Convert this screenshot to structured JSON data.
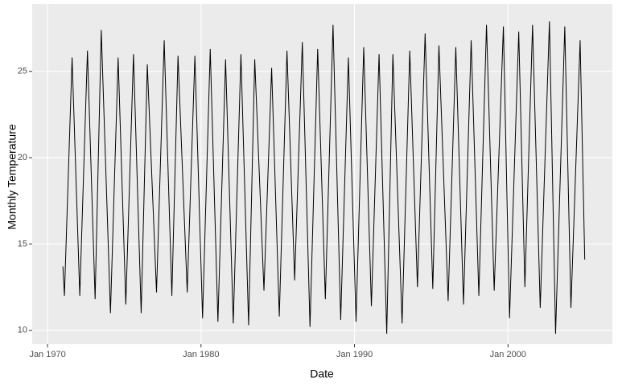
{
  "chart_data": {
    "type": "line",
    "x_label": "Date",
    "y_label": "Monthly Temperature",
    "xlim": [
      1969.0,
      2006.8
    ],
    "ylim": [
      9.2,
      28.9
    ],
    "xticks": [
      {
        "value": 1970,
        "label": "Jan 1970"
      },
      {
        "value": 1980,
        "label": "Jan 1980"
      },
      {
        "value": 1990,
        "label": "Jan 1990"
      },
      {
        "value": 2000,
        "label": "Jan 2000"
      }
    ],
    "yticks": [
      10,
      15,
      20,
      25
    ],
    "grid": true,
    "series": [
      {
        "color": "#000000",
        "x": [
          1971.0,
          1971.1,
          1971.6,
          1972.1,
          1972.6,
          1973.1,
          1973.5,
          1974.1,
          1974.6,
          1975.1,
          1975.6,
          1976.1,
          1976.5,
          1977.1,
          1977.6,
          1978.1,
          1978.5,
          1979.1,
          1979.6,
          1980.1,
          1980.6,
          1981.1,
          1981.6,
          1982.1,
          1982.6,
          1983.1,
          1983.5,
          1984.1,
          1984.6,
          1985.1,
          1985.6,
          1986.1,
          1986.6,
          1987.1,
          1987.6,
          1988.1,
          1988.6,
          1989.1,
          1989.6,
          1990.1,
          1990.6,
          1991.1,
          1991.6,
          1992.1,
          1992.5,
          1993.1,
          1993.6,
          1994.1,
          1994.6,
          1995.1,
          1995.5,
          1996.1,
          1996.6,
          1997.1,
          1997.6,
          1998.1,
          1998.6,
          1999.1,
          1999.7,
          2000.1,
          2000.7,
          2001.1,
          2001.6,
          2002.1,
          2002.7,
          2003.1,
          2003.7,
          2004.1,
          2004.7,
          2005.0
        ],
        "values": [
          13.7,
          12.0,
          25.8,
          12.0,
          26.2,
          11.8,
          27.4,
          11.0,
          25.8,
          11.5,
          26.0,
          11.0,
          25.4,
          12.2,
          26.8,
          12.0,
          25.9,
          12.2,
          25.9,
          10.7,
          26.3,
          10.5,
          25.7,
          10.4,
          26.0,
          10.3,
          25.7,
          12.3,
          25.2,
          10.8,
          26.2,
          12.9,
          26.7,
          10.2,
          26.3,
          11.8,
          27.7,
          10.6,
          25.8,
          10.5,
          26.4,
          11.4,
          26.0,
          9.8,
          26.0,
          10.4,
          26.2,
          12.5,
          27.2,
          12.4,
          26.5,
          11.7,
          26.4,
          11.5,
          26.8,
          12.0,
          27.7,
          12.3,
          27.6,
          10.7,
          27.3,
          12.5,
          27.7,
          11.3,
          27.9,
          9.8,
          27.6,
          11.3,
          26.8,
          14.1
        ]
      }
    ]
  }
}
